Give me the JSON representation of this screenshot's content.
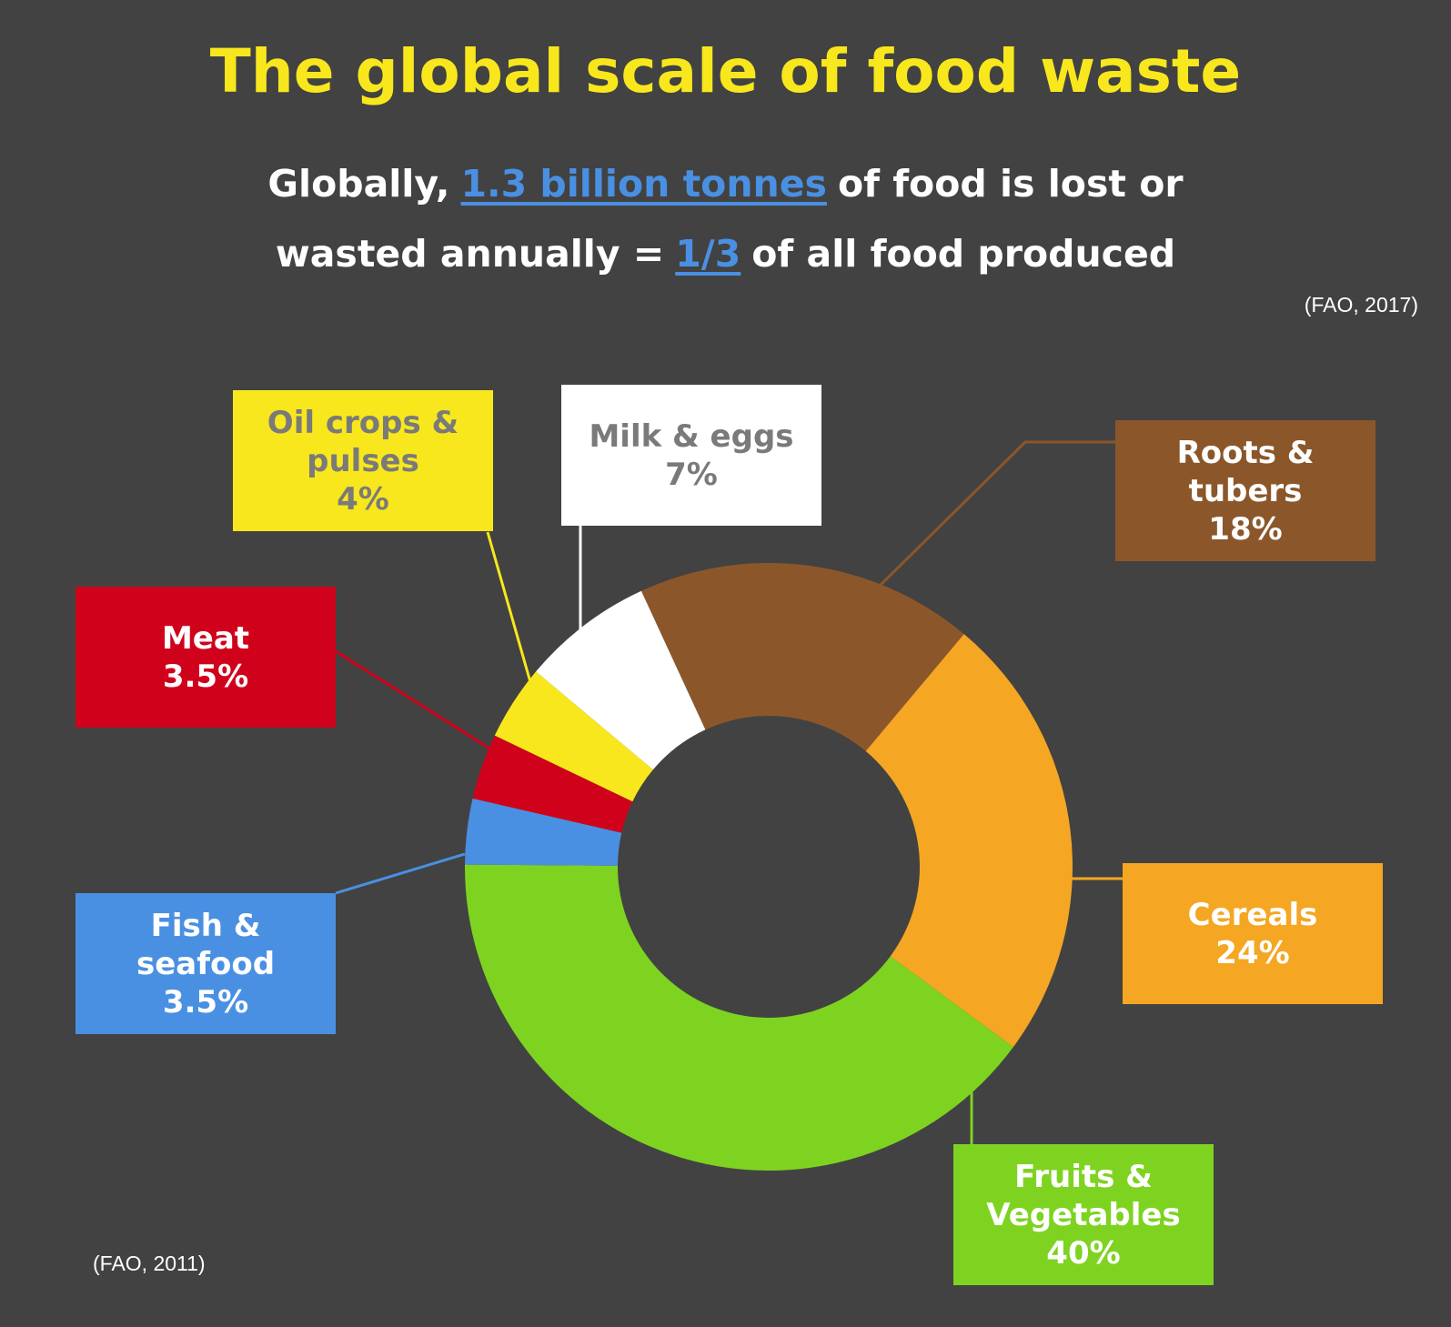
{
  "chart_data": {
    "type": "donut",
    "title": "The global scale of food waste",
    "subtitle_lines": [
      [
        {
          "text": "Globally,",
          "highlight": false
        },
        {
          "text": "1.3 billion tonnes",
          "highlight": true
        },
        {
          "text": "of food is lost or",
          "highlight": false
        }
      ],
      [
        {
          "text": "wasted annually =",
          "highlight": false
        },
        {
          "text": "1/3",
          "highlight": true
        },
        {
          "text": "of all food produced",
          "highlight": false
        }
      ]
    ],
    "subtitle_source": "(FAO, 2017)",
    "source": "(FAO, 2011)",
    "categories": [
      "Roots & tubers",
      "Cereals",
      "Fruits & Vegetables",
      "Fish & seafood",
      "Meat",
      "Oil crops & pulses",
      "Milk & eggs"
    ],
    "values": [
      18,
      24,
      40,
      3.5,
      3.5,
      4,
      7
    ],
    "value_labels": [
      "18%",
      "24%",
      "40%",
      "3.5%",
      "3.5%",
      "4%",
      "7%"
    ],
    "colors": [
      "#8b572a",
      "#f5a623",
      "#7ed321",
      "#4a90e2",
      "#d0021b",
      "#f8e71c",
      "#ffffff"
    ],
    "label_text_colors": [
      "#ffffff",
      "#ffffff",
      "#ffffff",
      "#ffffff",
      "#ffffff",
      "#7a7a7a",
      "#7a7a7a"
    ],
    "title_color": "#f8e71c",
    "highlight_color": "#4a90e2"
  }
}
